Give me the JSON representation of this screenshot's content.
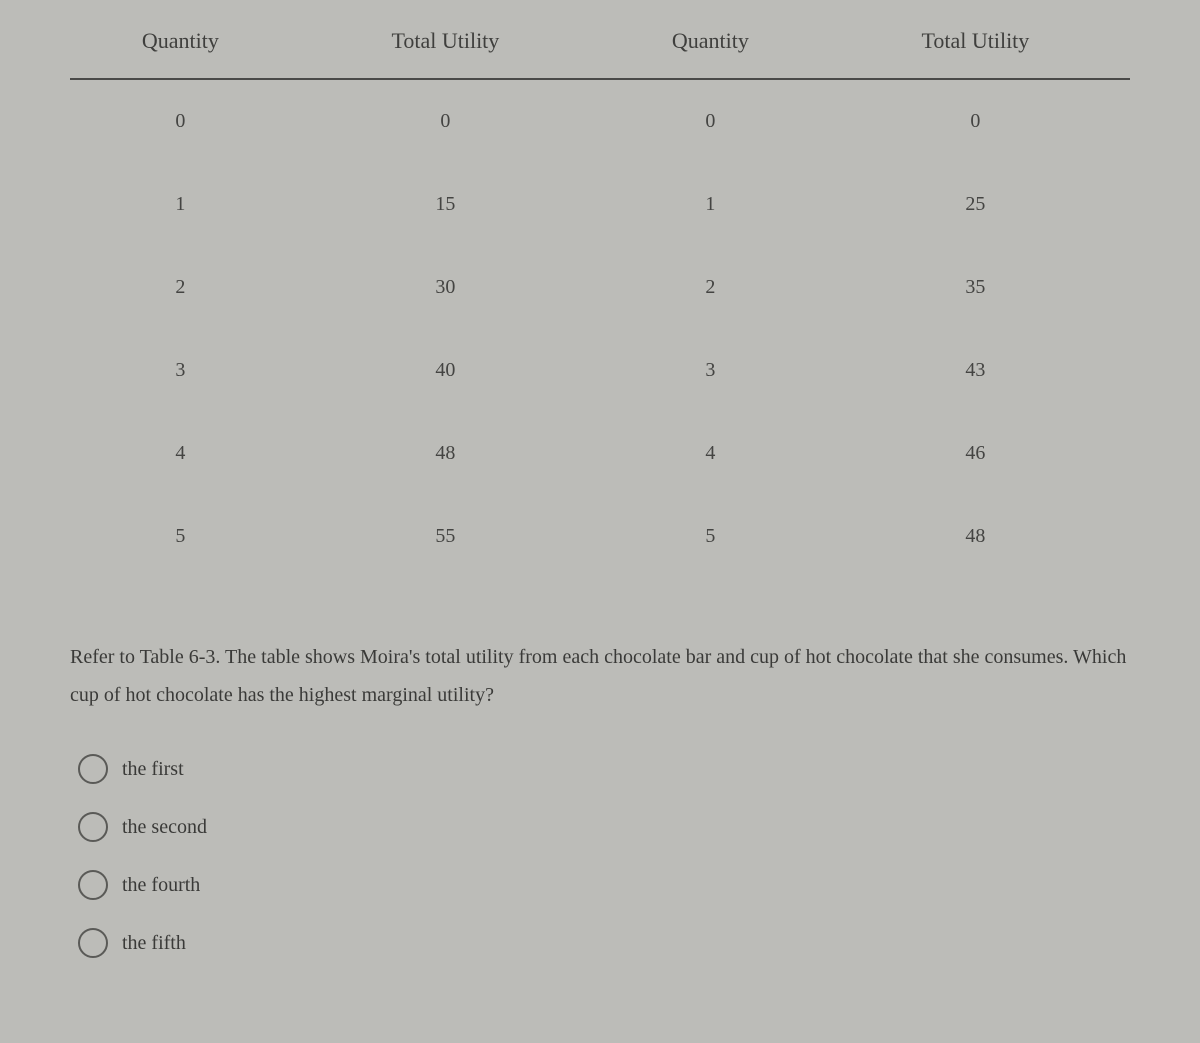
{
  "table": {
    "columns": [
      "Quantity",
      "Total Utility",
      "Quantity",
      "Total Utility"
    ],
    "rows": [
      [
        "0",
        "0",
        "0",
        "0"
      ],
      [
        "1",
        "15",
        "1",
        "25"
      ],
      [
        "2",
        "30",
        "2",
        "35"
      ],
      [
        "3",
        "40",
        "3",
        "43"
      ],
      [
        "4",
        "48",
        "4",
        "46"
      ],
      [
        "5",
        "55",
        "5",
        "48"
      ]
    ],
    "header_border_color": "#4a4a48",
    "font_family": "Georgia, serif",
    "header_fontsize": 22,
    "cell_fontsize": 20
  },
  "question_text": "Refer to Table 6-3. The table shows Moira's total utility from each chocolate bar and cup of hot chocolate that she consumes. Which cup of hot chocolate has the highest marginal utility?",
  "options": {
    "a": "the first",
    "b": "the second",
    "c": "the fourth",
    "d": "the fifth"
  },
  "colors": {
    "background": "#bcbcb8",
    "text": "#3a3a38",
    "radio_border": "#5a5a57"
  }
}
